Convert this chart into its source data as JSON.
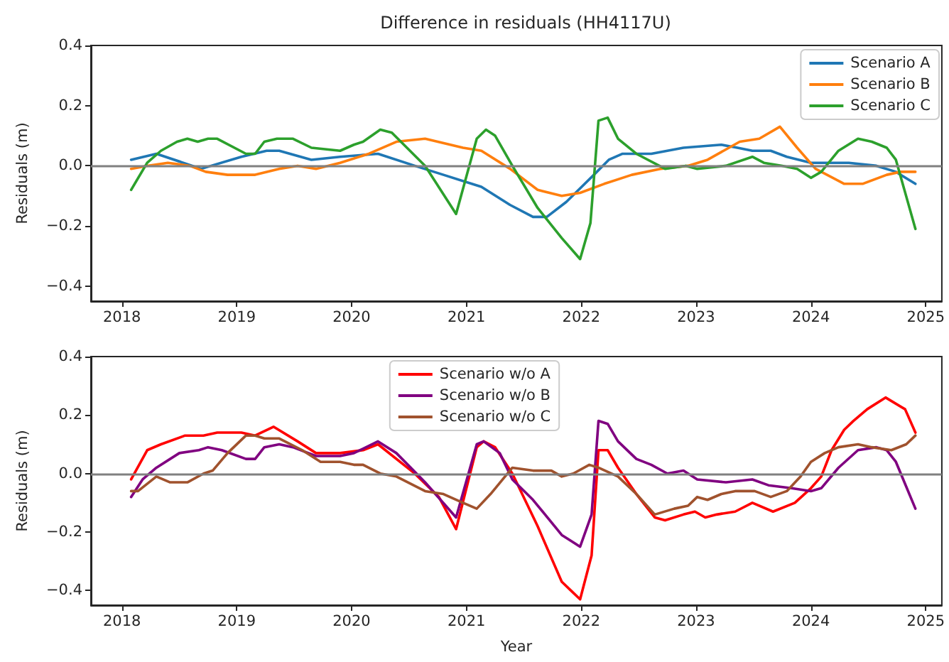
{
  "chart_data": [
    {
      "type": "line",
      "title": "Difference in residuals (HH4117U)",
      "ylabel": "Residuals (m)",
      "xlim": [
        2017.73,
        2025.14
      ],
      "xticks": [
        2018,
        2019,
        2020,
        2021,
        2022,
        2023,
        2024,
        2025
      ],
      "ylim": [
        -0.45,
        0.4
      ],
      "yticks": [
        {
          "value": -0.4,
          "label": "−0.4"
        },
        {
          "value": -0.2,
          "label": "−0.2"
        },
        {
          "value": 0,
          "label": "0.0"
        },
        {
          "value": 0.2,
          "label": "0.2"
        },
        {
          "value": 0.4,
          "label": "0.4"
        }
      ],
      "legend": "top right",
      "ref_lines": [
        {
          "axis": "y",
          "value": 0,
          "color": "#808080"
        }
      ],
      "series": [
        {
          "name": "Scenario A",
          "color": "#1f77b4",
          "x": [
            2018.08,
            2018.3,
            2018.69,
            2019.04,
            2019.26,
            2019.37,
            2019.65,
            2019.9,
            2020.23,
            2020.55,
            2020.8,
            2021.13,
            2021.38,
            2021.58,
            2021.7,
            2021.87,
            2022.11,
            2022.24,
            2022.36,
            2022.61,
            2022.89,
            2023.22,
            2023.36,
            2023.49,
            2023.65,
            2023.79,
            2024.0,
            2024.33,
            2024.57,
            2024.74,
            2024.91
          ],
          "values": [
            0.02,
            0.04,
            -0.01,
            0.03,
            0.05,
            0.05,
            0.02,
            0.03,
            0.04,
            0.0,
            -0.03,
            -0.07,
            -0.13,
            -0.17,
            -0.17,
            -0.12,
            -0.03,
            0.02,
            0.04,
            0.04,
            0.06,
            0.07,
            0.06,
            0.05,
            0.05,
            0.03,
            0.01,
            0.01,
            0.0,
            -0.02,
            -0.06
          ]
        },
        {
          "name": "Scenario B",
          "color": "#ff7f0e",
          "x": [
            2018.08,
            2018.22,
            2018.4,
            2018.59,
            2018.73,
            2018.92,
            2019.16,
            2019.37,
            2019.53,
            2019.69,
            2019.9,
            2020.15,
            2020.39,
            2020.64,
            2020.97,
            2021.13,
            2021.38,
            2021.62,
            2021.83,
            2021.99,
            2022.2,
            2022.44,
            2022.69,
            2022.93,
            2023.1,
            2023.38,
            2023.55,
            2023.73,
            2023.88,
            2024.04,
            2024.29,
            2024.45,
            2024.66,
            2024.78,
            2024.91
          ],
          "values": [
            -0.01,
            0.0,
            0.01,
            0.0,
            -0.02,
            -0.03,
            -0.03,
            -0.01,
            0.0,
            -0.01,
            0.01,
            0.04,
            0.08,
            0.09,
            0.06,
            0.05,
            -0.01,
            -0.08,
            -0.1,
            -0.09,
            -0.06,
            -0.03,
            -0.01,
            0.0,
            0.02,
            0.08,
            0.09,
            0.13,
            0.06,
            -0.01,
            -0.06,
            -0.06,
            -0.03,
            -0.02,
            -0.02
          ]
        },
        {
          "name": "Scenario C",
          "color": "#2ca02c",
          "x": [
            2018.08,
            2018.22,
            2018.34,
            2018.48,
            2018.57,
            2018.66,
            2018.75,
            2018.83,
            2019.08,
            2019.16,
            2019.24,
            2019.35,
            2019.49,
            2019.65,
            2019.9,
            2020.02,
            2020.1,
            2020.25,
            2020.35,
            2020.64,
            2020.91,
            2021.09,
            2021.17,
            2021.25,
            2021.4,
            2021.62,
            2021.83,
            2021.99,
            2022.08,
            2022.15,
            2022.23,
            2022.32,
            2022.48,
            2022.73,
            2022.91,
            2023.01,
            2023.26,
            2023.49,
            2023.59,
            2023.75,
            2023.88,
            2024.0,
            2024.09,
            2024.24,
            2024.41,
            2024.53,
            2024.66,
            2024.74,
            2024.91
          ],
          "values": [
            -0.08,
            0.01,
            0.05,
            0.08,
            0.09,
            0.08,
            0.09,
            0.09,
            0.04,
            0.04,
            0.08,
            0.09,
            0.09,
            0.06,
            0.05,
            0.07,
            0.08,
            0.12,
            0.11,
            0.0,
            -0.16,
            0.09,
            0.12,
            0.1,
            0.0,
            -0.14,
            -0.24,
            -0.31,
            -0.19,
            0.15,
            0.16,
            0.09,
            0.04,
            -0.01,
            0.0,
            -0.01,
            0.0,
            0.03,
            0.01,
            0.0,
            -0.01,
            -0.04,
            -0.02,
            0.05,
            0.09,
            0.08,
            0.06,
            0.02,
            -0.21
          ]
        }
      ]
    },
    {
      "type": "line",
      "xlabel": "Year",
      "ylabel": "Residuals (m)",
      "xlim": [
        2017.73,
        2025.14
      ],
      "xticks": [
        2018,
        2019,
        2020,
        2021,
        2022,
        2023,
        2024,
        2025
      ],
      "ylim": [
        -0.45,
        0.4
      ],
      "yticks": [
        {
          "value": -0.4,
          "label": "−0.4"
        },
        {
          "value": -0.2,
          "label": "−0.2"
        },
        {
          "value": 0,
          "label": "0.0"
        },
        {
          "value": 0.2,
          "label": "0.2"
        },
        {
          "value": 0.4,
          "label": "0.4"
        }
      ],
      "legend": "top",
      "ref_lines": [
        {
          "axis": "y",
          "value": 0,
          "color": "#808080"
        }
      ],
      "series": [
        {
          "name": "Scenario w/o A",
          "color": "#ff0000",
          "x": [
            2018.08,
            2018.22,
            2018.34,
            2018.55,
            2018.65,
            2018.71,
            2018.83,
            2019.04,
            2019.16,
            2019.32,
            2019.53,
            2019.69,
            2019.9,
            2020.1,
            2020.23,
            2020.55,
            2020.76,
            2020.91,
            2021.09,
            2021.15,
            2021.25,
            2021.4,
            2021.62,
            2021.83,
            2021.91,
            2021.99,
            2022.09,
            2022.15,
            2022.23,
            2022.32,
            2022.48,
            2022.64,
            2022.73,
            2022.89,
            2022.99,
            2023.08,
            2023.18,
            2023.34,
            2023.49,
            2023.67,
            2023.86,
            2024.0,
            2024.09,
            2024.18,
            2024.29,
            2024.37,
            2024.49,
            2024.65,
            2024.82,
            2024.91
          ],
          "values": [
            -0.02,
            0.08,
            0.1,
            0.13,
            0.13,
            0.13,
            0.14,
            0.14,
            0.13,
            0.16,
            0.11,
            0.07,
            0.07,
            0.08,
            0.1,
            0.0,
            -0.08,
            -0.19,
            0.09,
            0.11,
            0.09,
            0.0,
            -0.18,
            -0.37,
            -0.4,
            -0.43,
            -0.28,
            0.08,
            0.08,
            0.02,
            -0.07,
            -0.15,
            -0.16,
            -0.14,
            -0.13,
            -0.15,
            -0.14,
            -0.13,
            -0.1,
            -0.13,
            -0.1,
            -0.05,
            -0.01,
            0.08,
            0.15,
            0.18,
            0.22,
            0.26,
            0.22,
            0.14
          ]
        },
        {
          "name": "Scenario w/o B",
          "color": "#800080",
          "x": [
            2018.08,
            2018.18,
            2018.3,
            2018.5,
            2018.67,
            2018.75,
            2018.87,
            2019.08,
            2019.16,
            2019.24,
            2019.37,
            2019.49,
            2019.69,
            2019.9,
            2020.02,
            2020.23,
            2020.39,
            2020.64,
            2020.91,
            2021.09,
            2021.15,
            2021.29,
            2021.4,
            2021.58,
            2021.83,
            2021.99,
            2022.09,
            2022.15,
            2022.23,
            2022.32,
            2022.48,
            2022.61,
            2022.75,
            2022.89,
            2023.01,
            2023.26,
            2023.49,
            2023.63,
            2023.83,
            2024.0,
            2024.09,
            2024.24,
            2024.41,
            2024.57,
            2024.66,
            2024.74,
            2024.91
          ],
          "values": [
            -0.08,
            -0.02,
            0.02,
            0.07,
            0.08,
            0.09,
            0.08,
            0.05,
            0.05,
            0.09,
            0.1,
            0.09,
            0.06,
            0.06,
            0.07,
            0.11,
            0.07,
            -0.03,
            -0.15,
            0.1,
            0.11,
            0.07,
            -0.02,
            -0.09,
            -0.21,
            -0.25,
            -0.14,
            0.18,
            0.17,
            0.11,
            0.05,
            0.03,
            0.0,
            0.01,
            -0.02,
            -0.03,
            -0.02,
            -0.04,
            -0.05,
            -0.06,
            -0.05,
            0.02,
            0.08,
            0.09,
            0.08,
            0.04,
            -0.12
          ]
        },
        {
          "name": "Scenario w/o C",
          "color": "#a0522d",
          "x": [
            2018.08,
            2018.14,
            2018.3,
            2018.42,
            2018.57,
            2018.71,
            2018.79,
            2018.92,
            2019.08,
            2019.16,
            2019.24,
            2019.37,
            2019.57,
            2019.73,
            2019.9,
            2020.02,
            2020.1,
            2020.25,
            2020.39,
            2020.64,
            2020.8,
            2020.97,
            2021.09,
            2021.21,
            2021.4,
            2021.58,
            2021.74,
            2021.83,
            2021.93,
            2022.07,
            2022.15,
            2022.32,
            2022.48,
            2022.64,
            2022.81,
            2022.93,
            2023.01,
            2023.1,
            2023.22,
            2023.34,
            2023.51,
            2023.65,
            2023.79,
            2023.91,
            2024.0,
            2024.12,
            2024.24,
            2024.41,
            2024.53,
            2024.7,
            2024.83,
            2024.91
          ],
          "values": [
            -0.06,
            -0.06,
            -0.01,
            -0.03,
            -0.03,
            0.0,
            0.01,
            0.07,
            0.13,
            0.13,
            0.12,
            0.12,
            0.08,
            0.04,
            0.04,
            0.03,
            0.03,
            0.0,
            -0.01,
            -0.06,
            -0.07,
            -0.1,
            -0.12,
            -0.07,
            0.02,
            0.01,
            0.01,
            -0.01,
            0.0,
            0.03,
            0.02,
            -0.01,
            -0.07,
            -0.14,
            -0.12,
            -0.11,
            -0.08,
            -0.09,
            -0.07,
            -0.06,
            -0.06,
            -0.08,
            -0.06,
            -0.01,
            0.04,
            0.07,
            0.09,
            0.1,
            0.09,
            0.08,
            0.1,
            0.13
          ]
        }
      ]
    }
  ]
}
